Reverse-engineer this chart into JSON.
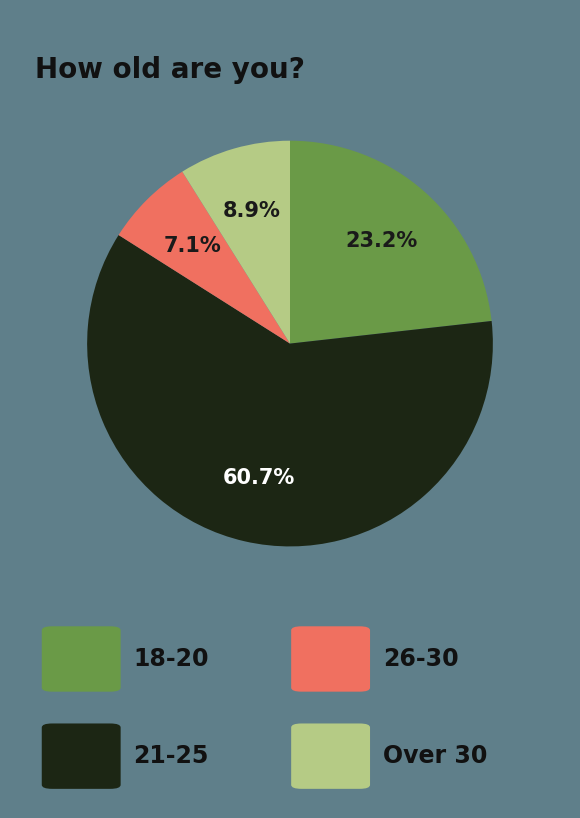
{
  "title": "How old are you?",
  "title_fontsize": 20,
  "title_fontweight": "bold",
  "background_color": "#5f7f8a",
  "slices": [
    {
      "label": "18-20",
      "value": 23.2,
      "color": "#6a9a47",
      "text_color": "#1a1a1a"
    },
    {
      "label": "21-25",
      "value": 60.7,
      "color": "#1c2614",
      "text_color": "#ffffff"
    },
    {
      "label": "26-30",
      "value": 7.1,
      "color": "#f07060",
      "text_color": "#1a1a1a"
    },
    {
      "label": "Over 30",
      "value": 8.9,
      "color": "#b5cb85",
      "text_color": "#1a1a1a"
    }
  ],
  "legend_items": [
    {
      "label": "18-20",
      "color": "#6a9a47"
    },
    {
      "label": "26-30",
      "color": "#f07060"
    },
    {
      "label": "21-25",
      "color": "#1c2614"
    },
    {
      "label": "Over 30",
      "color": "#b5cb85"
    }
  ],
  "startangle": 90,
  "figsize": [
    5.8,
    8.18
  ],
  "dpi": 100
}
